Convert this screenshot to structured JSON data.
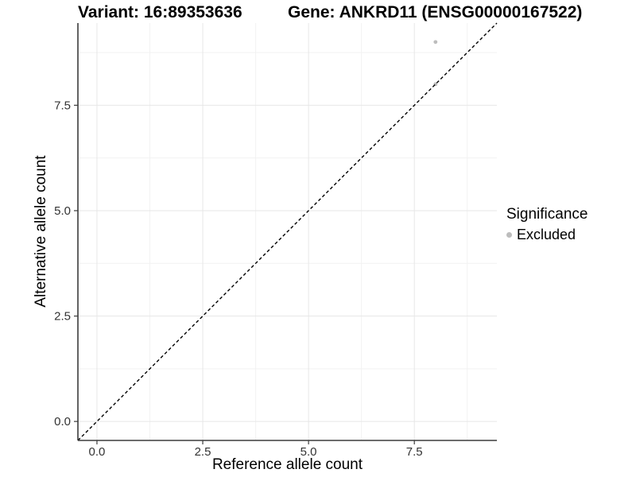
{
  "figure": {
    "title_left": "Variant: 16:89353636",
    "title_right": "Gene: ANKRD11 (ENSG00000167522)"
  },
  "legend": {
    "title": "Significance",
    "position": "right",
    "items": [
      {
        "label": "Excluded",
        "color": "#bdbdbd",
        "marker": "circle-icon"
      }
    ]
  },
  "chart_data": {
    "type": "scatter",
    "title": "Variant: 16:89353636    Gene: ANKRD11 (ENSG00000167522)",
    "xlabel": "Reference allele count",
    "ylabel": "Alternative allele count",
    "xlim": [
      -0.45,
      9.45
    ],
    "ylim": [
      -0.45,
      9.45
    ],
    "xticks": [
      {
        "value": 0.0,
        "label": "0.0"
      },
      {
        "value": 2.5,
        "label": "2.5"
      },
      {
        "value": 5.0,
        "label": "5.0"
      },
      {
        "value": 7.5,
        "label": "7.5"
      }
    ],
    "yticks": [
      {
        "value": 0.0,
        "label": "0.0"
      },
      {
        "value": 2.5,
        "label": "2.5"
      },
      {
        "value": 5.0,
        "label": "5.0"
      },
      {
        "value": 7.5,
        "label": "7.5"
      }
    ],
    "minor_ticks": [
      1.25,
      3.75,
      6.25,
      8.75
    ],
    "grid": "major+minor",
    "legend_position": "right",
    "series": [
      {
        "name": "Excluded",
        "color": "#bdbdbd",
        "points": [
          [
            8,
            9
          ],
          [
            8,
            8
          ]
        ]
      }
    ],
    "reference_line": {
      "style": "dashed",
      "color": "#000000",
      "from": [
        -0.45,
        -0.45
      ],
      "to": [
        9.45,
        9.45
      ]
    },
    "colors": {
      "background": "#ffffff",
      "grid_major": "#e7e7e7",
      "grid_minor": "#f2f2f2",
      "axis_line": "#3c3c3c",
      "tick_label": "#333333"
    }
  }
}
